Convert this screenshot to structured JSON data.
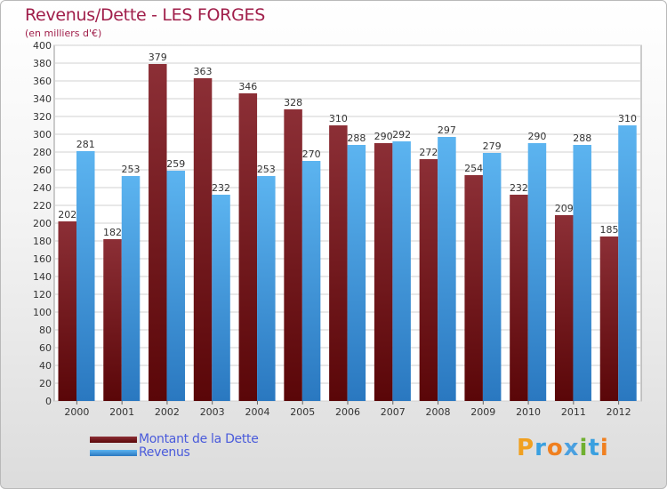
{
  "chart_data": {
    "type": "bar",
    "title": "Revenus/Dette - LES FORGES",
    "subtitle": "(en milliers d'€)",
    "categories": [
      "2000",
      "2001",
      "2002",
      "2003",
      "2004",
      "2005",
      "2006",
      "2007",
      "2008",
      "2009",
      "2010",
      "2011",
      "2012"
    ],
    "series": [
      {
        "name": "Montant de la Dette",
        "color": "#7a1f24",
        "values": [
          202,
          182,
          379,
          363,
          346,
          328,
          310,
          290,
          272,
          254,
          232,
          209,
          185
        ]
      },
      {
        "name": "Revenus",
        "color": "#3d9be0",
        "values": [
          281,
          253,
          259,
          232,
          253,
          270,
          288,
          292,
          297,
          279,
          290,
          288,
          310
        ]
      }
    ],
    "ylim": [
      0,
      400
    ],
    "ytick_step": 20,
    "grid": true,
    "legend_position": "bottom-left"
  },
  "logo": {
    "letters": [
      "P",
      "r",
      "o",
      "x",
      "i",
      "t",
      "i"
    ],
    "colors": [
      "#f0a020",
      "#3aa0e0",
      "#f08020",
      "#4aa0e0",
      "#70b030",
      "#3aa0e0",
      "#f08020"
    ]
  }
}
